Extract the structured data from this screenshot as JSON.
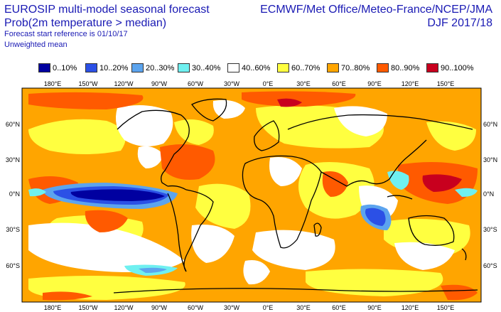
{
  "header": {
    "title_left_line1": "EUROSIP multi-model seasonal forecast",
    "title_left_line2": "Prob(2m temperature > median)",
    "subtitle_line1": "Forecast start reference is 01/10/17",
    "subtitle_line2": "Unweighted mean",
    "title_right_line1": "ECMWF/Met Office/Meteo-France/NCEP/JMA",
    "title_right_line2": "DJF 2017/18"
  },
  "legend": [
    {
      "label": "0..10%",
      "color": "#0000a0"
    },
    {
      "label": "10..20%",
      "color": "#2b50e6"
    },
    {
      "label": "20..30%",
      "color": "#5ca4ee"
    },
    {
      "label": "30..40%",
      "color": "#6ff0f0"
    },
    {
      "label": "40..60%",
      "color": "#ffffff"
    },
    {
      "label": "60..70%",
      "color": "#ffff40"
    },
    {
      "label": "70..80%",
      "color": "#ffa500"
    },
    {
      "label": "80..90%",
      "color": "#ff5a00"
    },
    {
      "label": "90..100%",
      "color": "#c8001e"
    }
  ],
  "axes": {
    "lon_ticks": [
      "180°E",
      "150°W",
      "120°W",
      "90°W",
      "60°W",
      "30°W",
      "0°E",
      "30°E",
      "60°E",
      "90°E",
      "120°E",
      "150°E"
    ],
    "lat_ticks_left": [
      "60°N",
      "30°N",
      "0°N",
      "30°S",
      "60°S"
    ],
    "lat_ticks_right": [
      "60°N",
      "30°N",
      "0°N",
      "30°S",
      "60°S"
    ]
  }
}
